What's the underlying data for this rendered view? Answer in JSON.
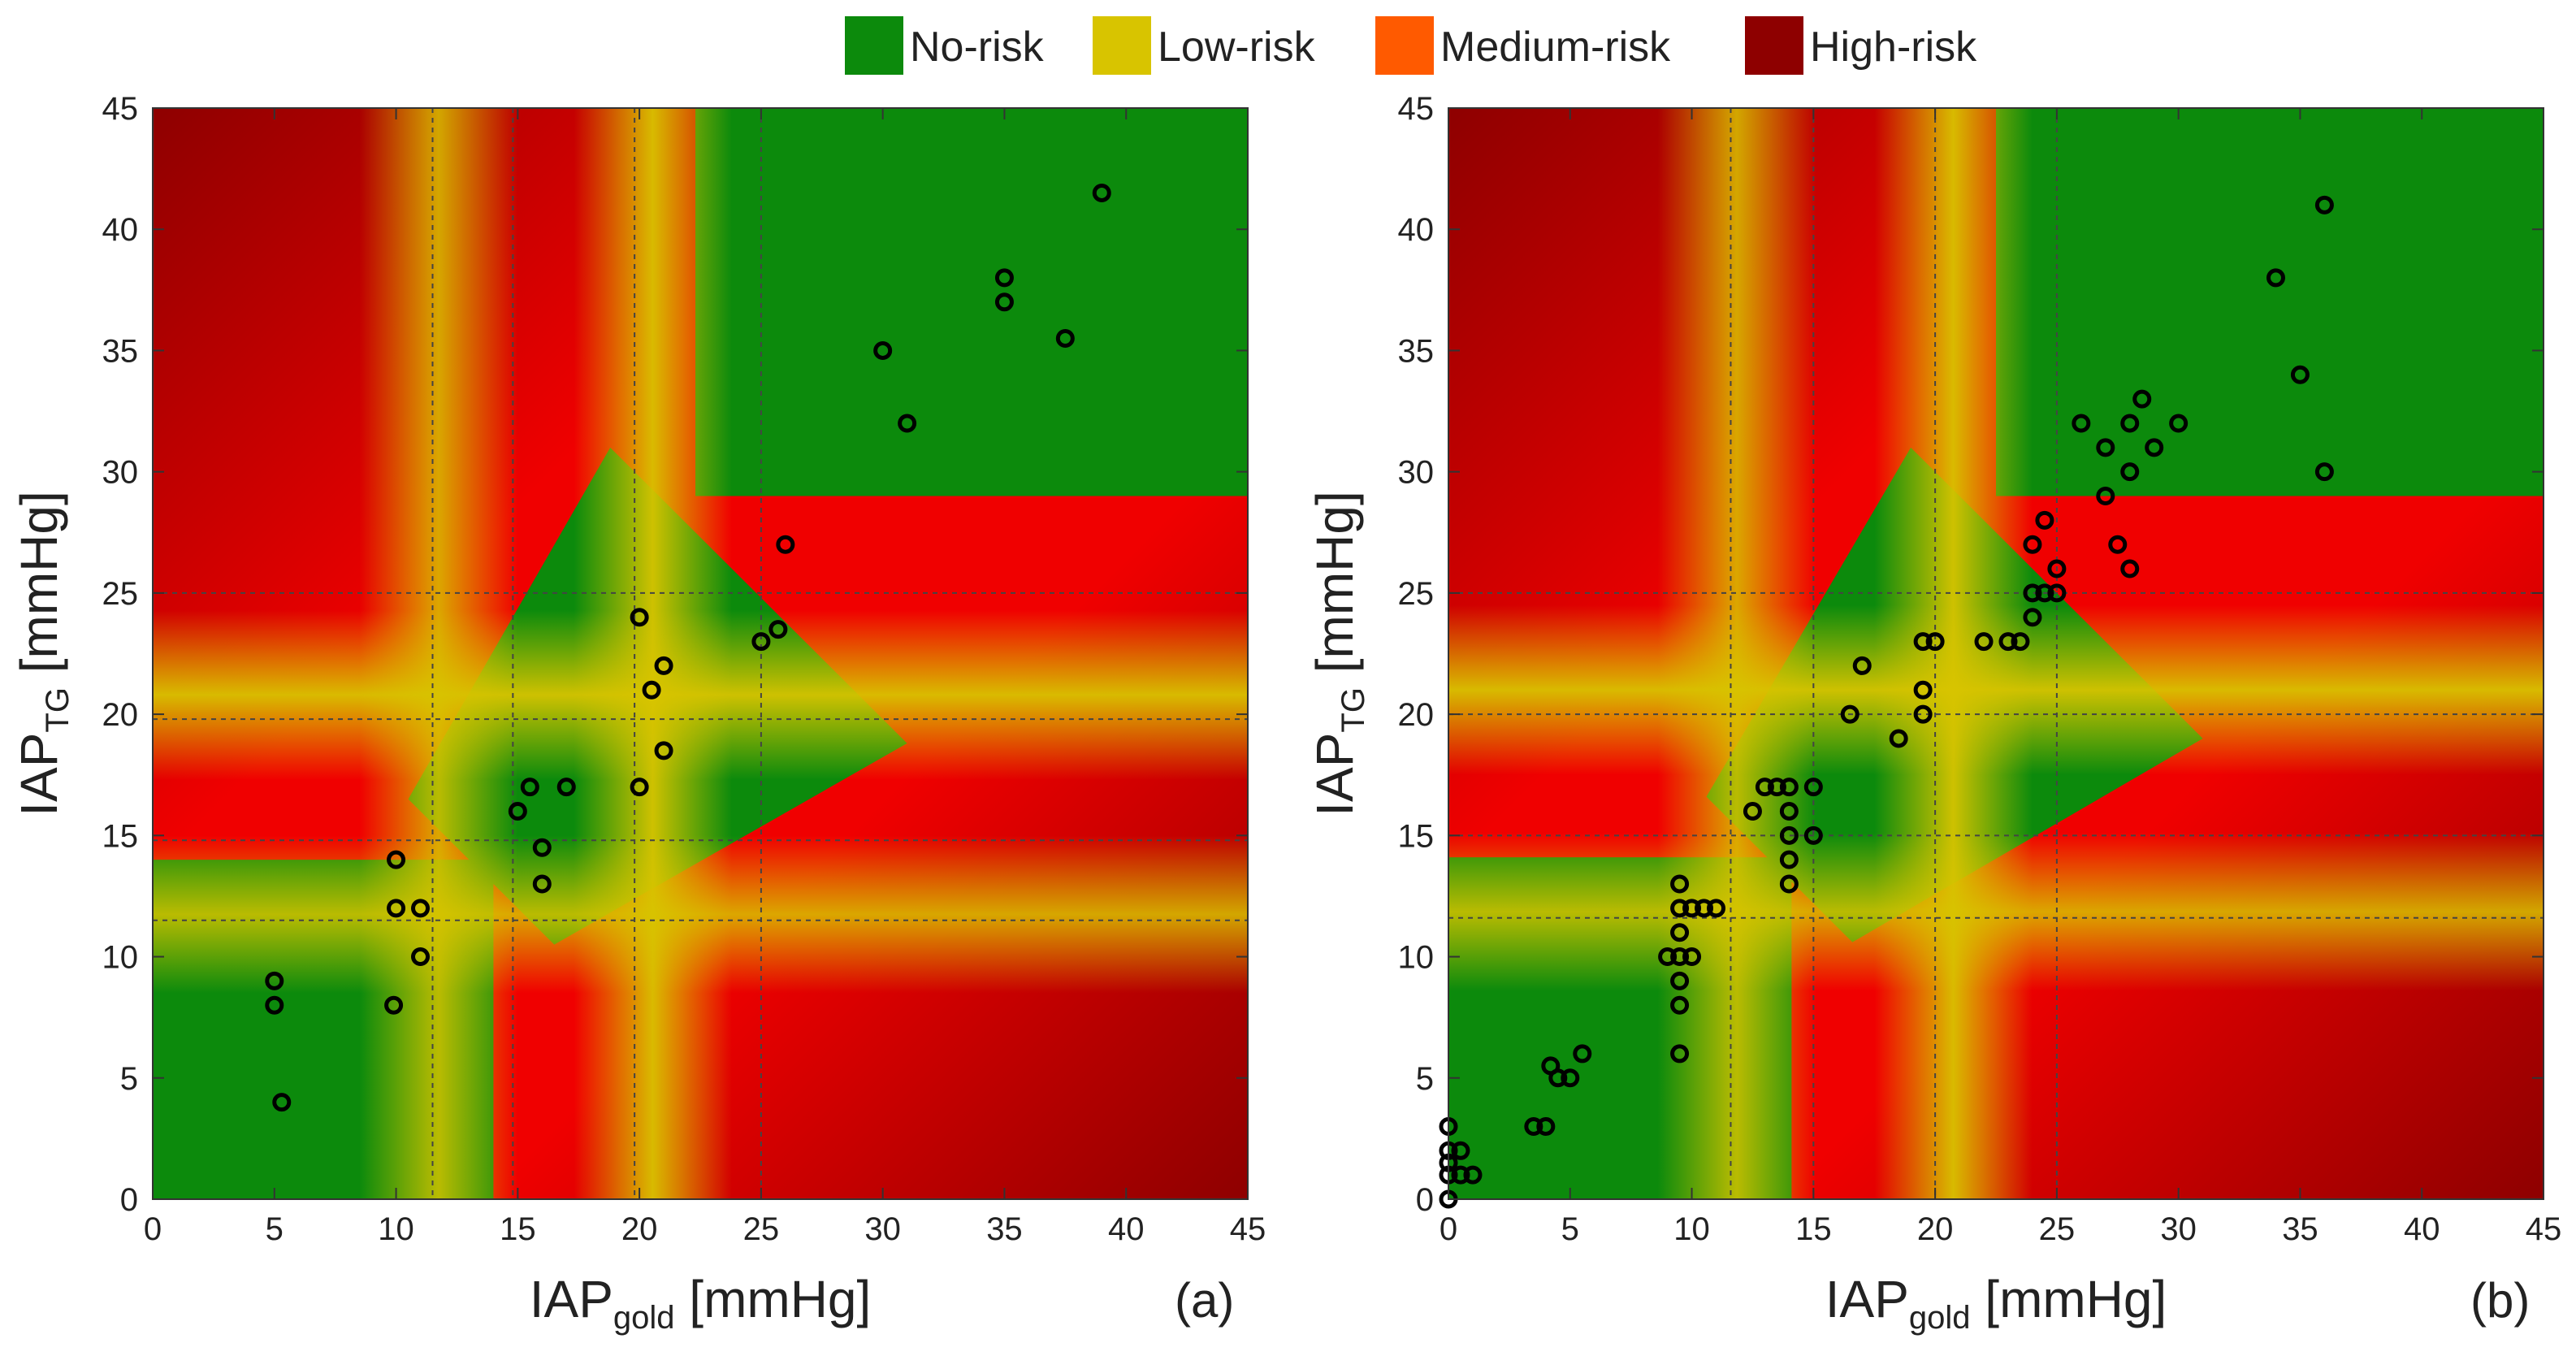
{
  "legend": [
    {
      "label": "No-risk",
      "color": "#0c8a0c"
    },
    {
      "label": "Low-risk",
      "color": "#d8c400"
    },
    {
      "label": "Medium-risk",
      "color": "#ff5a00"
    },
    {
      "label": "High-risk",
      "color": "#8e0000"
    }
  ],
  "colors": {
    "no_risk": "#0c8a0c",
    "low_risk": "#d8c400",
    "red": "#f00000",
    "high_risk": "#8e0000",
    "marker": "#000000",
    "gridline": "#444444"
  },
  "chart_data": [
    {
      "type": "scatter",
      "panel_label": "(a)",
      "xlabel_main": "IAP",
      "xlabel_sub": "gold",
      "xlabel_unit": " [mmHg]",
      "ylabel_main": "IAP",
      "ylabel_sub": "TG",
      "ylabel_unit": " [mmHg]",
      "xlim": [
        0,
        45
      ],
      "ylim": [
        0,
        45
      ],
      "ticks": [
        "0",
        "5",
        "10",
        "15",
        "20",
        "25",
        "30",
        "35",
        "40",
        "45"
      ],
      "threshold_lines": [
        11.5,
        14.8,
        19.8,
        25
      ],
      "points": [
        [
          5,
          9
        ],
        [
          5,
          8
        ],
        [
          5.3,
          4
        ],
        [
          10,
          14
        ],
        [
          10,
          12
        ],
        [
          9.9,
          8
        ],
        [
          11,
          12
        ],
        [
          11,
          10
        ],
        [
          15,
          16
        ],
        [
          15.5,
          17
        ],
        [
          16,
          14.5
        ],
        [
          16,
          13
        ],
        [
          17,
          17
        ],
        [
          20,
          24
        ],
        [
          20,
          17
        ],
        [
          20.5,
          21
        ],
        [
          21,
          22
        ],
        [
          21,
          18.5
        ],
        [
          25,
          23
        ],
        [
          25.7,
          23.5
        ],
        [
          26,
          27
        ],
        [
          30,
          35
        ],
        [
          31,
          32
        ],
        [
          35,
          38
        ],
        [
          35,
          37
        ],
        [
          37.5,
          35.5
        ],
        [
          39,
          41.5
        ]
      ]
    },
    {
      "type": "scatter",
      "panel_label": "(b)",
      "xlabel_main": "IAP",
      "xlabel_sub": "gold",
      "xlabel_unit": " [mmHg]",
      "ylabel_main": "IAP",
      "ylabel_sub": "TG",
      "ylabel_unit": " [mmHg]",
      "xlim": [
        0,
        45
      ],
      "ylim": [
        0,
        45
      ],
      "ticks": [
        "0",
        "5",
        "10",
        "15",
        "20",
        "25",
        "30",
        "35",
        "40",
        "45"
      ],
      "threshold_lines": [
        11.6,
        15,
        20,
        25
      ],
      "points": [
        [
          0,
          3
        ],
        [
          0,
          2
        ],
        [
          0,
          1.5
        ],
        [
          0,
          1
        ],
        [
          0,
          0
        ],
        [
          0.5,
          2
        ],
        [
          0.5,
          1
        ],
        [
          1,
          1
        ],
        [
          3.5,
          3
        ],
        [
          4,
          3
        ],
        [
          4.2,
          5.5
        ],
        [
          4.5,
          5
        ],
        [
          5,
          5
        ],
        [
          5.5,
          6
        ],
        [
          9,
          10
        ],
        [
          9.5,
          13
        ],
        [
          9.5,
          12
        ],
        [
          9.5,
          11
        ],
        [
          9.5,
          10
        ],
        [
          9.5,
          9
        ],
        [
          9.5,
          8
        ],
        [
          9.5,
          6
        ],
        [
          10,
          12
        ],
        [
          10,
          10
        ],
        [
          10.5,
          12
        ],
        [
          11,
          12
        ],
        [
          12.5,
          16
        ],
        [
          13,
          17
        ],
        [
          13.5,
          17
        ],
        [
          14,
          17
        ],
        [
          14,
          16
        ],
        [
          14,
          15
        ],
        [
          14,
          14
        ],
        [
          14,
          13
        ],
        [
          15,
          17
        ],
        [
          15,
          15
        ],
        [
          16.5,
          20
        ],
        [
          17,
          22
        ],
        [
          18.5,
          19
        ],
        [
          19.5,
          23
        ],
        [
          19.5,
          21
        ],
        [
          19.5,
          20
        ],
        [
          20,
          23
        ],
        [
          22,
          23
        ],
        [
          23,
          23
        ],
        [
          23.5,
          23
        ],
        [
          24,
          27
        ],
        [
          24,
          25
        ],
        [
          24,
          24
        ],
        [
          24.5,
          28
        ],
        [
          24.5,
          25
        ],
        [
          25,
          26
        ],
        [
          25,
          25
        ],
        [
          26,
          32
        ],
        [
          27,
          31
        ],
        [
          27,
          29
        ],
        [
          27.5,
          27
        ],
        [
          28,
          32
        ],
        [
          28,
          30
        ],
        [
          28,
          26
        ],
        [
          28.5,
          33
        ],
        [
          29,
          31
        ],
        [
          30,
          32
        ],
        [
          34,
          38
        ],
        [
          35,
          34
        ],
        [
          36,
          41
        ],
        [
          36,
          30
        ]
      ]
    }
  ]
}
